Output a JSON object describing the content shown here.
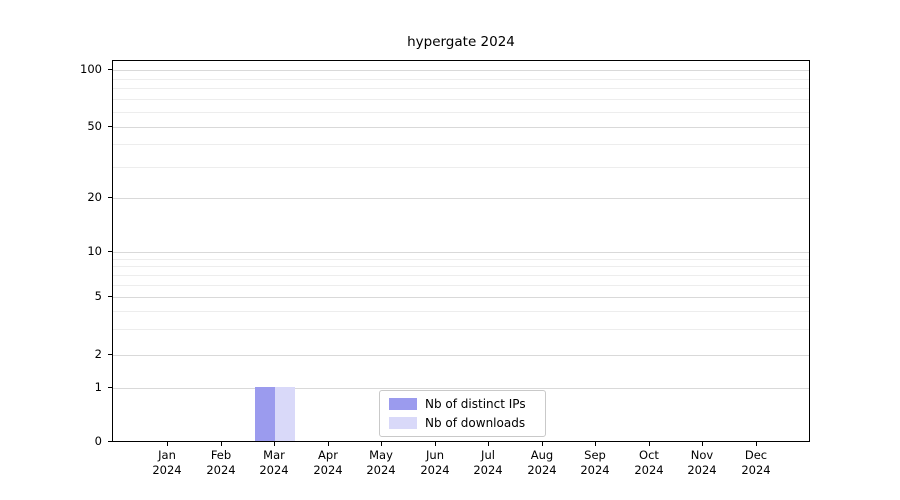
{
  "chart_data": {
    "type": "bar",
    "title": "hypergate 2024",
    "categories": [
      "Jan 2024",
      "Feb 2024",
      "Mar 2024",
      "Apr 2024",
      "May 2024",
      "Jun 2024",
      "Jul 2024",
      "Aug 2024",
      "Sep 2024",
      "Oct 2024",
      "Nov 2024",
      "Dec 2024"
    ],
    "x_tick_line1": [
      "Jan",
      "Feb",
      "Mar",
      "Apr",
      "May",
      "Jun",
      "Jul",
      "Aug",
      "Sep",
      "Oct",
      "Nov",
      "Dec"
    ],
    "x_tick_line2": "2024",
    "series": [
      {
        "name": "Nb of distinct IPs",
        "color": "#9b9bee",
        "values": [
          0,
          0,
          1,
          0,
          0,
          0,
          0,
          0,
          0,
          0,
          0,
          0
        ]
      },
      {
        "name": "Nb of downloads",
        "color": "#d9d9f9",
        "values": [
          0,
          0,
          1,
          0,
          0,
          0,
          0,
          0,
          0,
          0,
          0,
          0
        ]
      }
    ],
    "yscale": "symlog",
    "y_ticks": [
      0,
      1,
      2,
      5,
      10,
      20,
      50,
      100
    ],
    "y_minor_ticks": [
      3,
      4,
      6,
      7,
      8,
      9,
      30,
      40,
      60,
      70,
      80,
      90
    ],
    "ylim": [
      0,
      110
    ],
    "grid": "horizontal",
    "legend_position": "lower center"
  }
}
